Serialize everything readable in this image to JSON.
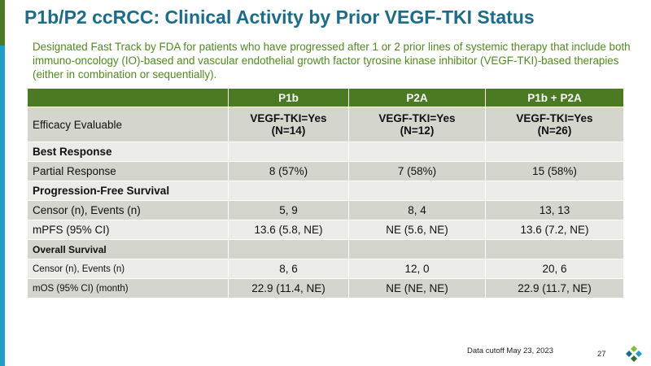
{
  "slide": {
    "title": "P1b/P2 ccRCC: Clinical Activity by Prior VEGF-TKI Status",
    "subtitle": "Designated Fast Track by FDA for patients who have progressed after 1 or 2 prior lines of systemic therapy that include both immuno-oncology (IO)-based and vascular endothelial growth factor tyrosine kinase inhibitor (VEGF-TKI)-based therapies (either in combination or sequentially).",
    "footer_note": "Data cutoff May 23, 2023",
    "page_number": "27"
  },
  "table": {
    "headers": [
      "",
      "P1b",
      "P2A",
      "P1b + P2A"
    ],
    "efficacy": {
      "label": "Efficacy Evaluable",
      "cells": [
        {
          "line1": "VEGF-TKI=Yes",
          "line2": "(N=14)"
        },
        {
          "line1": "VEGF-TKI=Yes",
          "line2": "(N=12)"
        },
        {
          "line1": "VEGF-TKI=Yes",
          "line2": "(N=26)"
        }
      ]
    },
    "best_response": {
      "label": "Best Response",
      "partial": {
        "label": "Partial Response",
        "values": [
          "8 (57%)",
          "7 (58%)",
          "15 (58%)"
        ]
      }
    },
    "pfs": {
      "label": "Progression-Free Survival",
      "censor": {
        "label": "Censor (n), Events (n)",
        "values": [
          "5, 9",
          "8, 4",
          "13, 13"
        ]
      },
      "mpfs": {
        "label": "mPFS (95% CI)",
        "values": [
          "13.6 (5.8, NE)",
          "NE (5.6, NE)",
          "13.6 (7.2, NE)"
        ]
      }
    },
    "os": {
      "label": "Overall Survival",
      "censor": {
        "label": "Censor (n), Events (n)",
        "values": [
          "8, 6",
          "12, 0",
          "20, 6"
        ]
      },
      "mos": {
        "label": "mOS (95% CI) (month)",
        "values": [
          "22.9 (11.4, NE)",
          "NE (NE, NE)",
          "22.9 (11.7, NE)"
        ]
      }
    }
  },
  "colors": {
    "title": "#1a6d8a",
    "subtitle": "#4f8a1f",
    "header_bg": "#4a7a22",
    "row_dark": "#d4d5cc",
    "row_light": "#ebebe7",
    "accent_blue": "#1f9fc8"
  },
  "logo": {
    "icon": "company-logo-icon"
  }
}
